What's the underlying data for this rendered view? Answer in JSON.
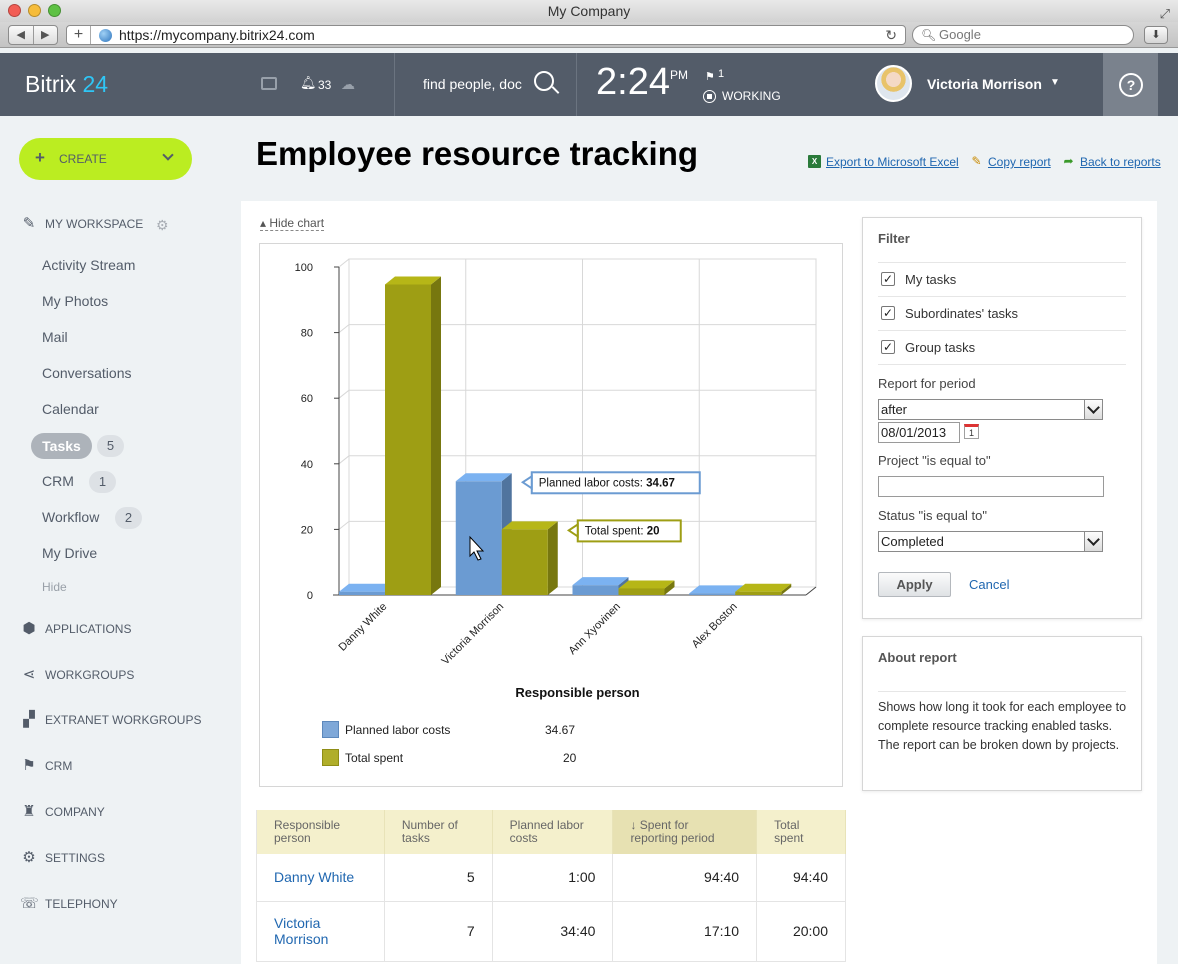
{
  "window": {
    "title": "My Company",
    "url": "https://mycompany.bitrix24.com",
    "search_placeholder": "Google"
  },
  "header": {
    "logo_text": "Bitrix",
    "logo_number": "24",
    "notifications_count": "33",
    "search_placeholder": "find people, doc",
    "time": "2:24",
    "ampm": "PM",
    "flag_count": "1",
    "work_status": "WORKING",
    "user_name": "Victoria Morrison",
    "help_label": "?"
  },
  "sidebar": {
    "create_label": "CREATE",
    "workspace_label": "MY WORKSPACE",
    "items": [
      {
        "label": "Activity Stream"
      },
      {
        "label": "My Photos"
      },
      {
        "label": "Mail"
      },
      {
        "label": "Conversations"
      },
      {
        "label": "Calendar"
      },
      {
        "label": "Tasks",
        "count": "5",
        "active": true
      },
      {
        "label": "CRM",
        "count": "1"
      },
      {
        "label": "Workflow",
        "count": "2"
      },
      {
        "label": "My Drive"
      }
    ],
    "hide_label": "Hide",
    "sections": [
      {
        "label": "APPLICATIONS",
        "icon": "applications-icon"
      },
      {
        "label": "WORKGROUPS",
        "icon": "workgroups-icon"
      },
      {
        "label": "EXTRANET WORKGROUPS",
        "icon": "extranet-icon"
      },
      {
        "label": "CRM",
        "icon": "crm-flag-icon"
      },
      {
        "label": "COMPANY",
        "icon": "company-icon"
      },
      {
        "label": "SETTINGS",
        "icon": "settings-icon"
      },
      {
        "label": "TELEPHONY",
        "icon": "telephony-icon"
      }
    ]
  },
  "page": {
    "title": "Employee resource tracking",
    "export_label": "Export to Microsoft Excel",
    "copy_label": "Copy report",
    "back_label": "Back to reports",
    "hide_chart_label": "Hide chart"
  },
  "chart_data": {
    "type": "bar",
    "xlabel": "Responsible person",
    "ylabel": "",
    "ylim": [
      0,
      100
    ],
    "yticks": [
      0,
      20,
      40,
      60,
      80,
      100
    ],
    "grid": true,
    "categories": [
      "Danny White",
      "Victoria Morrison",
      "Ann Xyovinen",
      "Alex Boston"
    ],
    "series": [
      {
        "name": "Planned labor costs",
        "values": [
          1,
          34.67,
          3,
          0.5
        ],
        "color": "#6b9bd2"
      },
      {
        "name": "Total spent",
        "values": [
          94.67,
          20,
          2,
          1
        ],
        "color": "#9e9e14"
      }
    ],
    "legend": [
      {
        "name": "Planned labor costs",
        "value": "34.67"
      },
      {
        "name": "Total spent",
        "value": "20"
      }
    ],
    "tooltips": [
      {
        "label": "Planned labor costs: ",
        "value": "34.67"
      },
      {
        "label": "Total spent: ",
        "value": "20"
      }
    ]
  },
  "filter": {
    "title": "Filter",
    "checkboxes": [
      {
        "label": "My tasks",
        "checked": true
      },
      {
        "label": "Subordinates' tasks",
        "checked": true
      },
      {
        "label": "Group tasks",
        "checked": true
      }
    ],
    "period_label": "Report for period",
    "period_value": "after",
    "date_value": "08/01/2013",
    "project_label": "Project \"is equal to\"",
    "project_value": "",
    "status_label": "Status \"is equal to\"",
    "status_value": "Completed",
    "apply_label": "Apply",
    "cancel_label": "Cancel"
  },
  "about": {
    "title": "About report",
    "text": "Shows how long it took for each employee to complete resource tracking enabled tasks. The report can be broken down by projects."
  },
  "table": {
    "headers": [
      "Responsible person",
      "Number of tasks",
      "Planned labor costs",
      "↓ Spent for reporting period",
      "Total spent"
    ],
    "rows": [
      [
        "Danny White",
        "5",
        "1:00",
        "94:40",
        "94:40"
      ],
      [
        "Victoria Morrison",
        "7",
        "34:40",
        "17:10",
        "20:00"
      ]
    ]
  }
}
